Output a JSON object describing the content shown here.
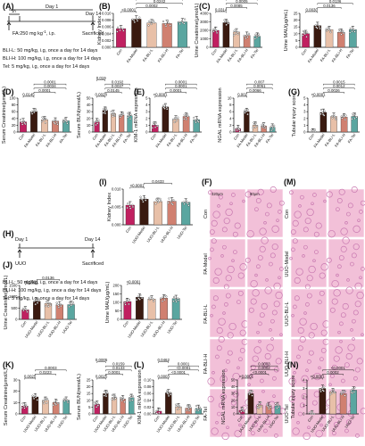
{
  "palette": {
    "Con": "#c02060",
    "Model": "#3a1a10",
    "BL-I-L": "#e8c0a8",
    "BL-I-H": "#d08070",
    "Tel": "#5aa6a0",
    "hist_bg": "#f2c0d8",
    "hist_stain": "#c878b0"
  },
  "panels": {
    "A": {
      "letter": "(A)",
      "day1": "Day 1",
      "day14": "Day 14",
      "h1": "1h",
      "fa": "FA:250 mg kg",
      "fa_exp": "-1",
      "fa_route": ", i.p.",
      "sacrificed": "Sacrificed",
      "lines": [
        "BLI-L: 50 mg/kg, i.g, once a day for 14 days",
        "BLI-H: 100 mg/kg, i.g, once a day for 14 days",
        "Tel: 5 mg/kg, i.g, once a day for 14 days"
      ]
    },
    "H": {
      "letter": "(H)",
      "day1": "Day 1",
      "day14": "Day 14",
      "uuo": "UUO",
      "sacrificed": "Sacrificed",
      "lines": [
        "BLI-L: 50 mg/kg, i.g, once a day for 14 days",
        "BLI-H: 100 mg/kg, i.g, once a day for 14 days",
        "Tel: 5 mg/kg, i.g, once a day for 14 days"
      ]
    },
    "F_letter": "(F)",
    "M_letter": "(M)",
    "F_rows": [
      "Con",
      "FA-Model",
      "FA-BLI-L",
      "FA-BLI-H",
      "FA-Tel"
    ],
    "M_rows": [
      "Con",
      "UUO-Model",
      "UUO-BLI-L",
      "UUO-BLI-H",
      "UUO-Tel"
    ],
    "scale_left": "320μm",
    "scale_right": "80μm"
  },
  "chart_data": [
    {
      "id": "B",
      "type": "bar",
      "ylabel": "Kidney Index",
      "categories": [
        "Con",
        "FA-Model",
        "FA-BLI-L",
        "FA-BLI-H",
        "FA-Tel"
      ],
      "values": [
        0.0055,
        0.0083,
        0.0072,
        0.007,
        0.0075
      ],
      "ylim": [
        0,
        0.01
      ],
      "yticks": [
        "0.000",
        "0.002",
        "0.004",
        "0.006",
        "0.008",
        "0.010"
      ],
      "pvalues": [
        "<0.0001",
        "0.0002",
        "0.0242",
        "0.0474",
        "0.0002"
      ]
    },
    {
      "id": "C1",
      "type": "bar",
      "ylabel": "Urine Creatinine(μmol/L)",
      "categories": [
        "Con",
        "FA-Model",
        "FA-BLI-L",
        "FA-BLI-H",
        "FA-Tel"
      ],
      "values": [
        2000,
        2900,
        1800,
        1400,
        1300
      ],
      "ylim": [
        0,
        4000
      ],
      "yticks": [
        "0",
        "1000",
        "2000",
        "3000",
        "4000"
      ],
      "pvalues": [
        "0.0314",
        "0.0085",
        "0.0005",
        "0.0001"
      ]
    },
    {
      "id": "C2",
      "type": "bar",
      "ylabel": "Urine MAU(μg/mL)",
      "categories": [
        "Con",
        "FA-Model",
        "FA-BLI-L",
        "FA-BLI-H",
        "FA-Tel"
      ],
      "values": [
        10,
        16,
        13,
        11,
        13
      ],
      "ylim": [
        0,
        25
      ],
      "yticks": [
        "0",
        "5",
        "10",
        "15",
        "20",
        "25"
      ],
      "pvalues": [
        "0.0030",
        "0.0136",
        "0.0136"
      ]
    },
    {
      "id": "D1",
      "type": "bar",
      "ylabel": "Serum Creatinine(μmol/L)",
      "categories": [
        "Con",
        "FA-Model",
        "FA-BLI-L",
        "FA-BLI-H",
        "FA-Tel"
      ],
      "values": [
        30,
        60,
        36,
        32,
        33
      ],
      "ylim": [
        0,
        100
      ],
      "yticks": [
        "0",
        "20",
        "40",
        "60",
        "80",
        "100"
      ],
      "pvalues": [
        "0.0145",
        "0.0001",
        "0.0034",
        "0.0001"
      ]
    },
    {
      "id": "D2",
      "type": "bar",
      "ylabel": "Serum BUN(mmol/L)",
      "categories": [
        "Con",
        "FA-Model",
        "FA-BLI-L",
        "FA-BLI-H",
        "FA-Tel"
      ],
      "values": [
        15,
        32,
        27,
        25,
        24
      ],
      "ylim": [
        0,
        50
      ],
      "yticks": [
        "0",
        "10",
        "20",
        "30",
        "40",
        "50"
      ],
      "pvalues": [
        "0.0028",
        "0.0145",
        "0.0037",
        "0.0192",
        "0.019"
      ]
    },
    {
      "id": "E1",
      "type": "bar",
      "ylabel": "KIM-1 mRNA expression",
      "categories": [
        "Con",
        "FA-Model",
        "FA-BLI-L",
        "FA-BLI-H",
        "FA-Tel"
      ],
      "values": [
        1.0,
        3.7,
        1.9,
        2.3,
        1.8
      ],
      "ylim": [
        0,
        5
      ],
      "yticks": [
        "0",
        "1",
        "2",
        "3",
        "4",
        "5"
      ],
      "pvalues": [
        "<0.0001",
        "0.0001",
        "0.0001",
        "0.0001"
      ]
    },
    {
      "id": "E2",
      "type": "bar",
      "ylabel": "NGAL mRNA expression",
      "categories": [
        "Con",
        "FA-Model",
        "FA-BLI-L",
        "FA-BLI-H",
        "FA-Tel"
      ],
      "values": [
        1.0,
        6.0,
        2.0,
        1.8,
        1.4
      ],
      "ylim": [
        0,
        10
      ],
      "yticks": [
        "0",
        "2",
        "4",
        "6",
        "8",
        "10"
      ],
      "pvalues": [
        "0.002",
        "0.0066",
        "0.0051",
        "0.007"
      ]
    },
    {
      "id": "G",
      "type": "bar",
      "ylabel": "Tubular injury score",
      "categories": [
        "Con",
        "FA-Model",
        "FA-BLI-L",
        "FA-BLI-H",
        "FA-Tel"
      ],
      "values": [
        0,
        2.9,
        2.3,
        2.2,
        2.3
      ],
      "ylim": [
        0,
        5
      ],
      "yticks": [
        "0",
        "1",
        "2",
        "3",
        "4",
        "5"
      ],
      "pvalues": [
        "<0.0001",
        "0.0026",
        "0.0012",
        "0.0015"
      ]
    },
    {
      "id": "I",
      "type": "bar",
      "ylabel": "Kidney Index",
      "categories": [
        "Con",
        "UUO-Model",
        "UUO-BLI-L",
        "UUO-BLI-H",
        "UUO-Tel"
      ],
      "values": [
        0.0055,
        0.0072,
        0.0065,
        0.0066,
        0.0063
      ],
      "ylim": [
        0,
        0.01
      ],
      "yticks": [
        "0.000",
        "0.005",
        "0.010"
      ],
      "pvalues": [
        "<0.0001",
        "0.0433"
      ]
    },
    {
      "id": "J1",
      "type": "bar",
      "ylabel": "Urine Creatinine(μmol/L)",
      "categories": [
        "Con",
        "UUO-Model",
        "UUO-BLI-L",
        "UUO-BLI-H",
        "UUO-Tel"
      ],
      "values": [
        420,
        800,
        700,
        640,
        650
      ],
      "ylim": [
        0,
        1500
      ],
      "yticks": [
        "0",
        "500",
        "1000",
        "1500"
      ],
      "pvalues": [
        "<0.0001",
        "0.0136"
      ]
    },
    {
      "id": "J2",
      "type": "bar",
      "ylabel": "Urine MAU(μg/mL)",
      "categories": [
        "Con",
        "UUO-Model",
        "UUO-BLI-L",
        "UUO-BLI-H",
        "UUO-Tel"
      ],
      "values": [
        105,
        130,
        120,
        125,
        122
      ],
      "ylim": [
        0,
        200
      ],
      "yticks": [
        "0",
        "50",
        "100",
        "150",
        "200"
      ],
      "pvalues": [
        "<0.0001"
      ]
    },
    {
      "id": "K1",
      "type": "bar",
      "ylabel": "Serum Creatinine(μmol/L)",
      "categories": [
        "Con",
        "UUO-Model",
        "UUO-BLI-L",
        "UUO-BLI-H",
        "UUO-Tel"
      ],
      "values": [
        7,
        15,
        12,
        10,
        12
      ],
      "ylim": [
        0,
        30
      ],
      "yticks": [
        "0",
        "10",
        "20",
        "30"
      ],
      "pvalues": [
        "0.0025",
        "0.0223",
        "0.0003"
      ]
    },
    {
      "id": "K2",
      "type": "bar",
      "ylabel": "Serum BUN(mmol/L)",
      "categories": [
        "Con",
        "UUO-Model",
        "UUO-BLI-L",
        "UUO-BLI-H",
        "UUO-Tel"
      ],
      "values": [
        7,
        15,
        12,
        11,
        12
      ],
      "ylim": [
        0,
        25
      ],
      "yticks": [
        "0",
        "5",
        "10",
        "15",
        "20",
        "25"
      ],
      "pvalues": [
        "0.0025",
        "0.0001",
        "0.0133",
        "0.0159",
        "0.0005"
      ]
    },
    {
      "id": "L1",
      "type": "bar",
      "ylabel": "KIM-1 mRNA expression",
      "categories": [
        "Con",
        "UUO-Model",
        "UUO-BLI-L",
        "UUO-BLI-H",
        "UUO-Tel"
      ],
      "values": [
        0.008,
        0.062,
        0.021,
        0.017,
        0.016
      ],
      "ylim": [
        0,
        0.1
      ],
      "yticks": [
        "0.00",
        "0.02",
        "0.04",
        "0.06",
        "0.08",
        "0.10"
      ],
      "pvalues": [
        "0.0003",
        "<0.0001",
        "<0.0001",
        "0.0001",
        "0.0462"
      ]
    },
    {
      "id": "L2",
      "type": "bar",
      "ylabel": "NGAL mRNA expression",
      "categories": [
        "Con",
        "UUO-Model",
        "UUO-BLI-L",
        "UUO-BLI-H",
        "UUO-Tel"
      ],
      "values": [
        5,
        30,
        13,
        12,
        12
      ],
      "ylim": [
        0,
        50
      ],
      "yticks": [
        "0",
        "10",
        "20",
        "30",
        "40",
        "50"
      ],
      "pvalues": [
        "<0.0001",
        "<0.0001",
        "0.0002",
        "0.0003"
      ]
    },
    {
      "id": "N",
      "type": "bar",
      "ylabel": "Tubular injury score",
      "categories": [
        "Con",
        "UUO-Model",
        "UUO-BLI-L",
        "UUO-BLI-H",
        "UUO-Tel"
      ],
      "values": [
        0,
        3.0,
        2.6,
        2.4,
        2.8
      ],
      "ylim": [
        0,
        4
      ],
      "yticks": [
        "0",
        "1",
        "2",
        "3",
        "4"
      ],
      "pvalues": [
        "<0.0001",
        "0.0002",
        "<0.0001"
      ]
    }
  ]
}
